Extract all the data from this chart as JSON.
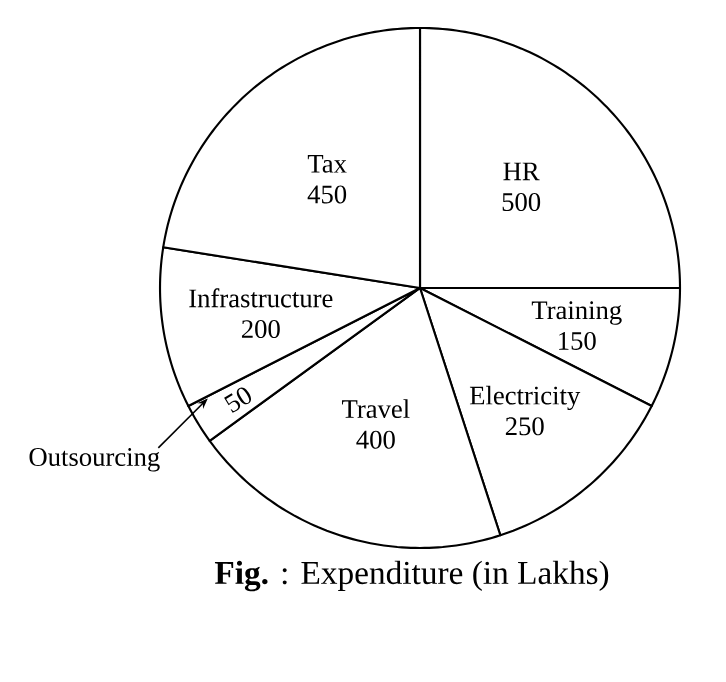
{
  "chart_data": {
    "type": "pie",
    "title": "**Fig.** : Expenditure (in Lakhs)",
    "categories": [
      "HR",
      "Training",
      "Electricity",
      "Travel",
      "Outsourcing",
      "Infrastructure",
      "Tax"
    ],
    "values": [
      500,
      150,
      250,
      400,
      50,
      200,
      450
    ],
    "colors": [
      "#ffffff",
      "#ffffff",
      "#ffffff",
      "#ffffff",
      "#ffffff",
      "#ffffff",
      "#ffffff"
    ],
    "data_labels": true
  }
}
